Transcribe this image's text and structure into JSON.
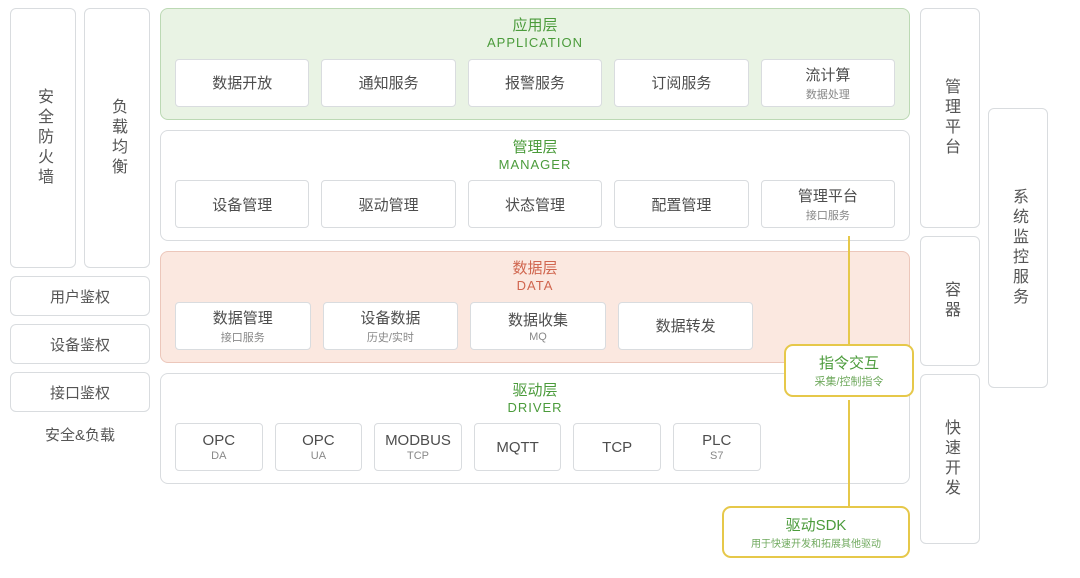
{
  "left": {
    "firewall": "安全防火墙",
    "loadbal": "负载均衡",
    "user_auth": "用户鉴权",
    "device_auth": "设备鉴权",
    "api_auth": "接口鉴权",
    "footer": "安全&负载"
  },
  "layers": {
    "app": {
      "title_cn": "应用层",
      "title_en": "APPLICATION",
      "items": [
        {
          "label": "数据开放"
        },
        {
          "label": "通知服务"
        },
        {
          "label": "报警服务"
        },
        {
          "label": "订阅服务"
        },
        {
          "label": "流计算",
          "sub": "数据处理"
        }
      ]
    },
    "manager": {
      "title_cn": "管理层",
      "title_en": "MANAGER",
      "items": [
        {
          "label": "设备管理"
        },
        {
          "label": "驱动管理"
        },
        {
          "label": "状态管理"
        },
        {
          "label": "配置管理"
        },
        {
          "label": "管理平台",
          "sub": "接口服务"
        }
      ]
    },
    "data": {
      "title_cn": "数据层",
      "title_en": "DATA",
      "items": [
        {
          "label": "数据管理",
          "sub": "接口服务"
        },
        {
          "label": "设备数据",
          "sub": "历史/实时"
        },
        {
          "label": "数据收集",
          "sub": "MQ"
        },
        {
          "label": "数据转发"
        }
      ]
    },
    "driver": {
      "title_cn": "驱动层",
      "title_en": "DRIVER",
      "items": [
        {
          "label": "OPC",
          "sub": "DA"
        },
        {
          "label": "OPC",
          "sub": "UA"
        },
        {
          "label": "MODBUS",
          "sub": "TCP"
        },
        {
          "label": "MQTT"
        },
        {
          "label": "TCP"
        },
        {
          "label": "PLC",
          "sub": "S7"
        }
      ]
    }
  },
  "callouts": {
    "cmd": {
      "title": "指令交互",
      "sub": "采集/控制指令"
    },
    "sdk": {
      "title": "驱动SDK",
      "sub": "用于快速开发和拓展其他驱动"
    }
  },
  "right": {
    "mgmt_platform": "管理平台",
    "container": "容器",
    "quick_dev": "快速开发",
    "sys_monitor": "系统监控服务"
  },
  "colors": {
    "green": "#4b9b3b",
    "app_bg": "#e9f3e4",
    "data_bg": "#fbe8e0",
    "callout_border": "#e6c84a",
    "box_border": "#d9dcdf"
  }
}
